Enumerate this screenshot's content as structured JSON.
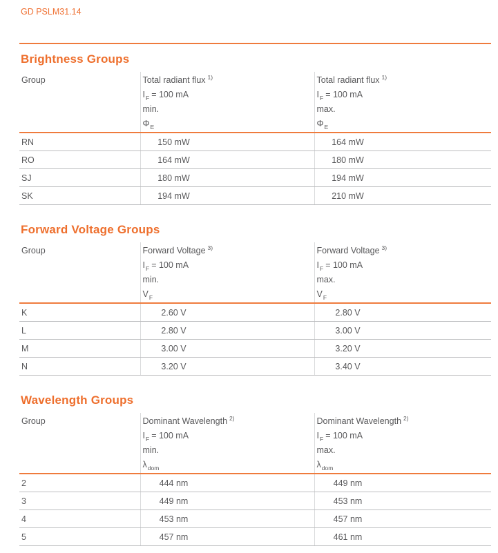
{
  "header": {
    "doc_id": "GD PSLM31.14"
  },
  "colors": {
    "accent_orange": "#ee6f2d",
    "text_gray": "#58585a"
  },
  "tables": [
    {
      "title": "Brightness Groups",
      "col_group_label": "Group",
      "cols": [
        {
          "quantity": "Total radiant flux",
          "footnote": "1)",
          "current_symbol": "I",
          "current_sub": "F",
          "current_rest": "= 100 mA",
          "bound": "min.",
          "symbol": "Φ",
          "symbol_sub": "E"
        },
        {
          "quantity": "Total radiant flux",
          "footnote": "1)",
          "current_symbol": "I",
          "current_sub": "F",
          "current_rest": "= 100 mA",
          "bound": "max.",
          "symbol": "Φ",
          "symbol_sub": "E"
        }
      ],
      "rows": [
        {
          "group": "RN",
          "min": "150 mW",
          "max": "164 mW"
        },
        {
          "group": "RO",
          "min": "164 mW",
          "max": "180 mW"
        },
        {
          "group": "SJ",
          "min": "180 mW",
          "max": "194 mW"
        },
        {
          "group": "SK",
          "min": "194 mW",
          "max": "210 mW"
        }
      ]
    },
    {
      "title": "Forward Voltage Groups",
      "col_group_label": "Group",
      "cols": [
        {
          "quantity": "Forward Voltage",
          "footnote": "3)",
          "current_symbol": "I",
          "current_sub": "F",
          "current_rest": "= 100 mA",
          "bound": "min.",
          "symbol": "V",
          "symbol_sub": "F"
        },
        {
          "quantity": "Forward Voltage",
          "footnote": "3)",
          "current_symbol": "I",
          "current_sub": "F",
          "current_rest": "= 100 mA",
          "bound": "max.",
          "symbol": "V",
          "symbol_sub": "F"
        }
      ],
      "rows": [
        {
          "group": "K",
          "min": "2.60 V",
          "max": "2.80 V"
        },
        {
          "group": "L",
          "min": "2.80 V",
          "max": "3.00 V"
        },
        {
          "group": "M",
          "min": "3.00 V",
          "max": "3.20 V"
        },
        {
          "group": "N",
          "min": "3.20 V",
          "max": "3.40 V"
        }
      ]
    },
    {
      "title": "Wavelength Groups",
      "col_group_label": "Group",
      "cols": [
        {
          "quantity": "Dominant Wavelength",
          "footnote": "2)",
          "current_symbol": "I",
          "current_sub": "F",
          "current_rest": "= 100 mA",
          "bound": "min.",
          "symbol": "λ",
          "symbol_sub": "dom"
        },
        {
          "quantity": "Dominant Wavelength",
          "footnote": "2)",
          "current_symbol": "I",
          "current_sub": "F",
          "current_rest": "= 100 mA",
          "bound": "max.",
          "symbol": "λ",
          "symbol_sub": "dom"
        }
      ],
      "rows": [
        {
          "group": "2",
          "min": "444 nm",
          "max": "449 nm"
        },
        {
          "group": "3",
          "min": "449 nm",
          "max": "453 nm"
        },
        {
          "group": "4",
          "min": "453 nm",
          "max": "457 nm"
        },
        {
          "group": "5",
          "min": "457 nm",
          "max": "461 nm"
        }
      ]
    }
  ]
}
